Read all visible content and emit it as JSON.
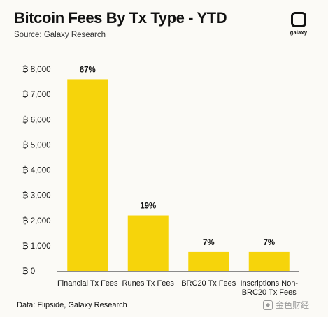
{
  "header": {
    "title": "Bitcoin Fees By Tx Type - YTD",
    "source": "Source: Galaxy Research"
  },
  "logo": {
    "text": "galaxy",
    "icon": "galaxy-logo-icon"
  },
  "footer": {
    "data_source": "Data: Flipside, Galaxy Research"
  },
  "watermark": {
    "text": "金色财经",
    "icon": "jinse-logo-icon"
  },
  "chart_data": {
    "type": "bar",
    "title": "Bitcoin Fees By Tx Type - YTD",
    "categories": [
      [
        "Financial Tx Fees"
      ],
      [
        "Runes Tx Fees"
      ],
      [
        "BRC20 Tx Fees"
      ],
      [
        "Inscriptions Non-",
        "BRC20 Tx Fees"
      ]
    ],
    "values": [
      7600,
      2200,
      750,
      750
    ],
    "data_labels": [
      "67%",
      "19%",
      "7%",
      "7%"
    ],
    "yticks": [
      0,
      1000,
      2000,
      3000,
      4000,
      5000,
      6000,
      7000,
      8000
    ],
    "ytick_labels": [
      "₿ 0",
      "₿ 1,000",
      "₿ 2,000",
      "₿ 3,000",
      "₿ 4,000",
      "₿ 5,000",
      "₿ 6,000",
      "₿ 7,000",
      "₿ 8,000"
    ],
    "ylim": [
      0,
      8000
    ],
    "grid": false,
    "bar_color": "#f6d40b",
    "axis_color": "#8a8a8a"
  }
}
